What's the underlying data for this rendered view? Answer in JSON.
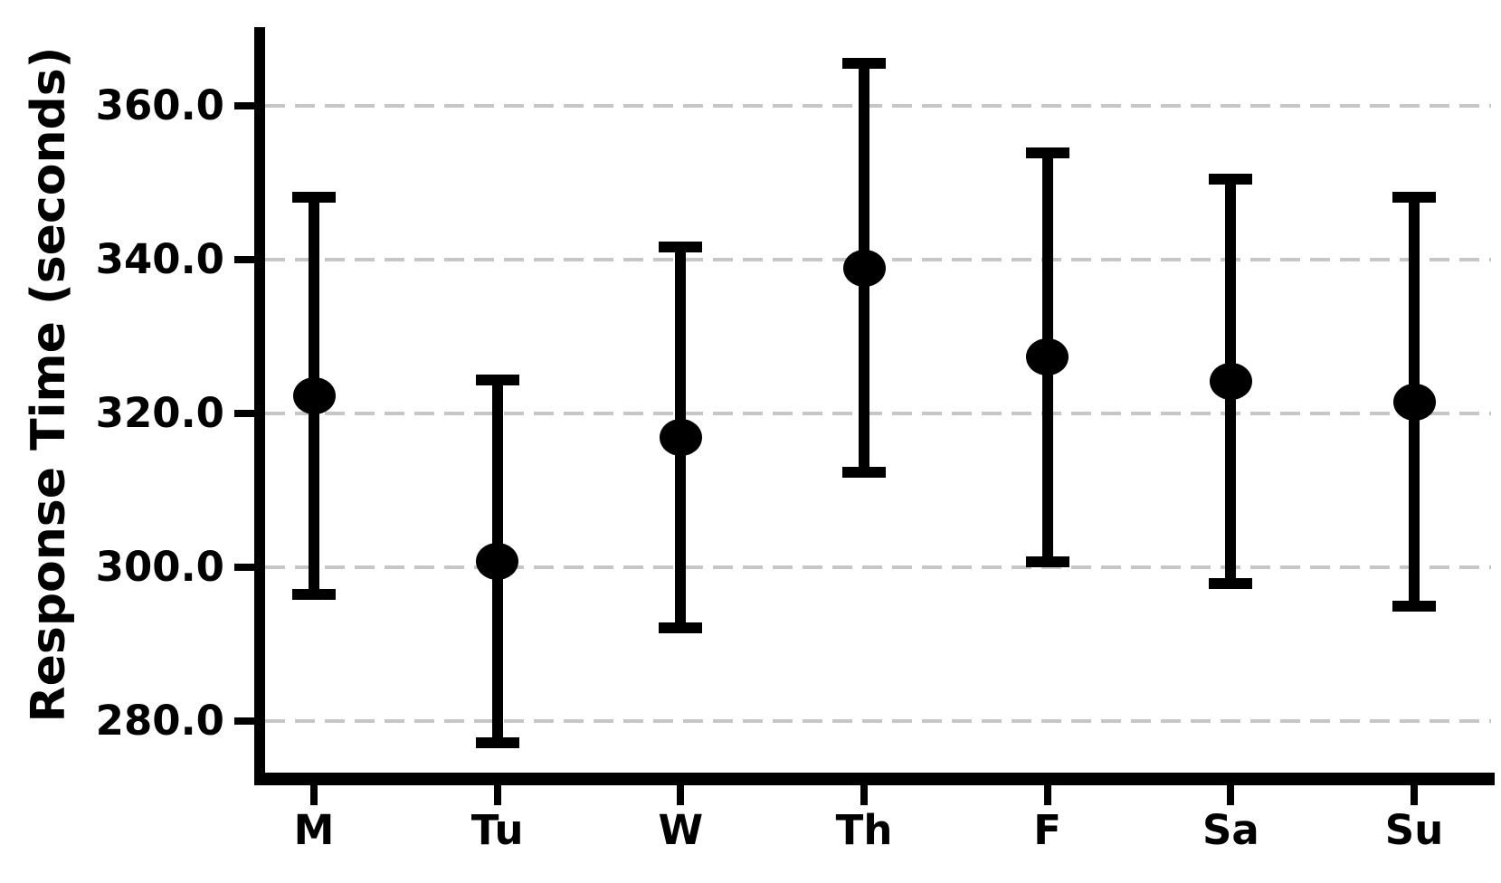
{
  "chart_data": {
    "type": "scatter",
    "subtype": "point-estimates-with-error-bars",
    "title": "",
    "xlabel": "",
    "ylabel": "Response Time (seconds)",
    "categories": [
      "M",
      "Tu",
      "W",
      "Th",
      "F",
      "Sa",
      "Su"
    ],
    "series": [
      {
        "name": "Response Time",
        "means": [
          322.3,
          300.8,
          316.9,
          338.9,
          327.3,
          324.2,
          321.5
        ],
        "errors": [
          25.8,
          23.6,
          24.8,
          26.6,
          26.6,
          26.3,
          26.6
        ],
        "upper": [
          348.1,
          324.4,
          341.7,
          365.5,
          353.9,
          350.5,
          348.1
        ],
        "lower": [
          296.5,
          277.2,
          292.1,
          312.3,
          300.7,
          297.9,
          294.9
        ]
      }
    ],
    "yticks": [
      360,
      340,
      320,
      300,
      280
    ],
    "ytick_labels": [
      "360.0",
      "340.0",
      "320.0",
      "300.0",
      "280.0"
    ],
    "ylim": [
      273.3,
      370.2
    ],
    "grid": "horizontal, dashed, on",
    "legend": "none",
    "marker_shape": "filled-circle",
    "colors": {
      "marker": "#000000",
      "error_bar": "#000000",
      "spine": "#000000",
      "grid": "#c6c6c6",
      "text": "#000000",
      "background": "#ffffff"
    }
  }
}
